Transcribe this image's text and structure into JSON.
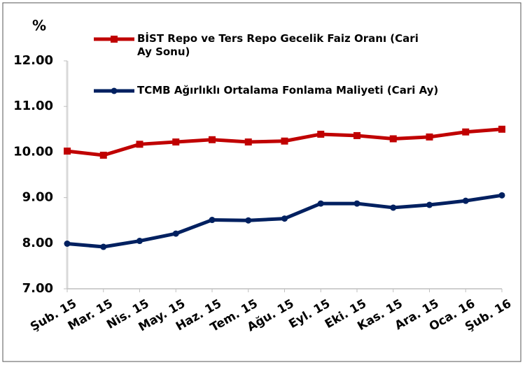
{
  "chart_data": {
    "type": "line",
    "y_unit_label": "%",
    "categories": [
      "Şub. 15",
      "Mar. 15",
      "Nis. 15",
      "May. 15",
      "Haz. 15",
      "Tem. 15",
      "Ağu. 15",
      "Eyl. 15",
      "Eki. 15",
      "Kas. 15",
      "Ara. 15",
      "Oca. 16",
      "Şub. 16"
    ],
    "series": [
      {
        "name": "BİST Repo ve Ters Repo Gecelik Faiz Oranı (Cari Ay Sonu)",
        "color": "#c00000",
        "marker": "square",
        "values": [
          10.02,
          9.93,
          10.17,
          10.22,
          10.27,
          10.22,
          10.24,
          10.39,
          10.36,
          10.29,
          10.33,
          10.44,
          10.5
        ]
      },
      {
        "name": "TCMB Ağırlıklı Ortalama Fonlama Maliyeti (Cari Ay)",
        "color": "#002060",
        "marker": "circle",
        "values": [
          7.99,
          7.92,
          8.05,
          8.21,
          8.51,
          8.5,
          8.54,
          8.87,
          8.87,
          8.78,
          8.84,
          8.93,
          9.05
        ]
      }
    ],
    "ylim": [
      7,
      12
    ],
    "yticks": [
      {
        "value": 7,
        "label": "7.00"
      },
      {
        "value": 8,
        "label": "8.00"
      },
      {
        "value": 9,
        "label": "9.00"
      },
      {
        "value": 10,
        "label": "10.00"
      },
      {
        "value": 11,
        "label": "11.00"
      },
      {
        "value": 12,
        "label": "12.00"
      }
    ],
    "grid": false
  }
}
